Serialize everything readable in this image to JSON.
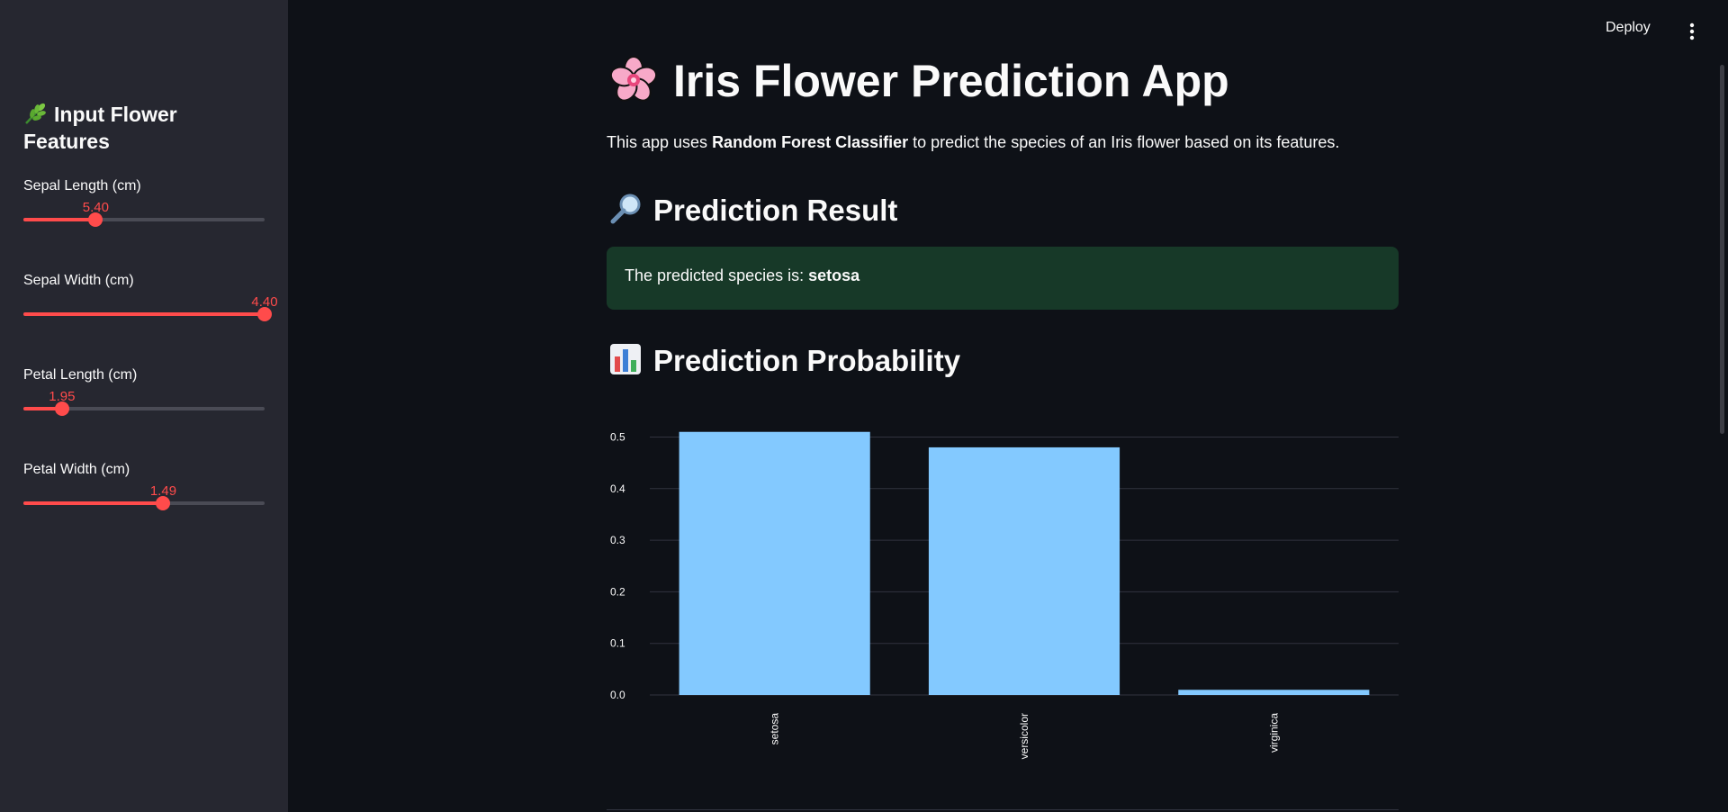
{
  "header": {
    "deploy_label": "Deploy",
    "menu_icon": "more-vertical-icon"
  },
  "sidebar": {
    "title": "Input Flower Features",
    "title_icon": "herb-icon",
    "sliders": [
      {
        "label": "Sepal Length (cm)",
        "value": "5.40",
        "fraction": 0.3
      },
      {
        "label": "Sepal Width (cm)",
        "value": "4.40",
        "fraction": 1.0
      },
      {
        "label": "Petal Length (cm)",
        "value": "1.95",
        "fraction": 0.16
      },
      {
        "label": "Petal Width (cm)",
        "value": "1.49",
        "fraction": 0.58
      }
    ],
    "accent_color": "#ff4b4b"
  },
  "main": {
    "title": "Iris Flower Prediction App",
    "title_icon": "cherry-blossom-icon",
    "description_prefix": "This app uses ",
    "description_bold": "Random Forest Classifier",
    "description_suffix": " to predict the species of an Iris flower based on its features.",
    "result_heading": "Prediction Result",
    "result_heading_icon": "magnifier-icon",
    "result_prefix": "The predicted species is: ",
    "result_species": "setosa",
    "result_color": "#173928",
    "probability_heading": "Prediction Probability",
    "probability_heading_icon": "bar-chart-icon"
  },
  "chart_data": {
    "type": "bar",
    "categories": [
      "setosa",
      "versicolor",
      "virginica"
    ],
    "values": [
      0.51,
      0.48,
      0.01
    ],
    "yticks": [
      "0.0",
      "0.1",
      "0.2",
      "0.3",
      "0.4",
      "0.5"
    ],
    "ylim": [
      0,
      0.5
    ],
    "bar_color": "#83c9ff",
    "grid": true
  }
}
